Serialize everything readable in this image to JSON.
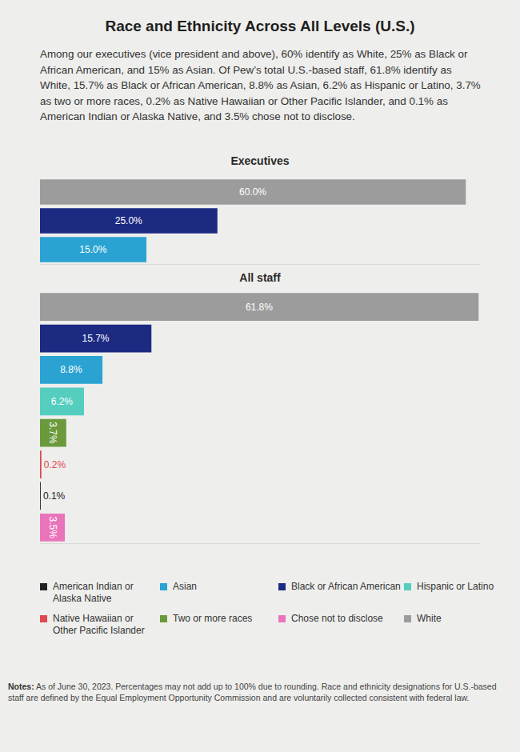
{
  "title": "Race and Ethnicity Across All Levels (U.S.)",
  "description": "Among our executives (vice president and above), 60% identify as White, 25% as Black or African American, and 15% as Asian. Of Pew’s total U.S.-based staff, 61.8% identify as White, 15.7% as Black or African American, 8.8% as Asian, 6.2% as Hispanic or Latino, 3.7% as two or more races, 0.2% as Native Hawaiian or Other Pacific Islander, and 0.1% as American Indian or Alaska Native, and 3.5% chose not to disclose.",
  "chart_data": [
    {
      "type": "bar",
      "title": "Executives",
      "orientation": "horizontal",
      "categories": [
        "White",
        "Black or African American",
        "Asian"
      ],
      "values": [
        60.0,
        25.0,
        15.0
      ],
      "value_labels": [
        "60.0%",
        "25.0%",
        "15.0%"
      ],
      "colors": [
        "#9c9c9c",
        "#1c2a82",
        "#2aa3d2"
      ],
      "data_labels": true,
      "tick_labels": false,
      "grid": false,
      "xlim": [
        0,
        62
      ],
      "xticks": []
    },
    {
      "type": "bar",
      "title": "All staff",
      "orientation": "horizontal",
      "categories": [
        "White",
        "Black or African American",
        "Asian",
        "Hispanic or Latino",
        "Two or more races",
        "Native Hawaiian or Other Pacific Islander",
        "American Indian or Alaska Native",
        "Chose not to disclose"
      ],
      "values": [
        61.8,
        15.7,
        8.8,
        6.2,
        3.7,
        0.2,
        0.1,
        3.5
      ],
      "value_labels": [
        "61.8%",
        "15.7%",
        "8.8%",
        "6.2%",
        "3.7%",
        "0.2%",
        "0.1%",
        "3.5%"
      ],
      "colors": [
        "#9c9c9c",
        "#1c2a82",
        "#2aa3d2",
        "#55cdbf",
        "#6b9a3c",
        "#e0474f",
        "#222222",
        "#ea74bb"
      ],
      "data_labels": true,
      "tick_labels": false,
      "grid": false,
      "xlim": [
        0,
        62
      ],
      "xticks": []
    }
  ],
  "legend_items": [
    {
      "name": "American Indian or Alaska Native",
      "color": "#222222"
    },
    {
      "name": "Asian",
      "color": "#2aa3d2"
    },
    {
      "name": "Black or African American",
      "color": "#1c2a82"
    },
    {
      "name": "Hispanic or Latino",
      "color": "#55cdbf"
    },
    {
      "name": "Native Hawaiian or Other Pacific Islander",
      "color": "#e0474f"
    },
    {
      "name": "Two or more races",
      "color": "#6b9a3c"
    },
    {
      "name": "Chose not to disclose",
      "color": "#ea74bb"
    },
    {
      "name": "White",
      "color": "#9c9c9c"
    }
  ],
  "notes_label": "Notes:",
  "notes": "As of June 30, 2023. Percentages may not add up to 100% due to rounding. Race and ethnicity designations for U.S.-based staff are defined by the Equal Employment Opportunity Commission and are voluntarily collected consistent with federal law."
}
